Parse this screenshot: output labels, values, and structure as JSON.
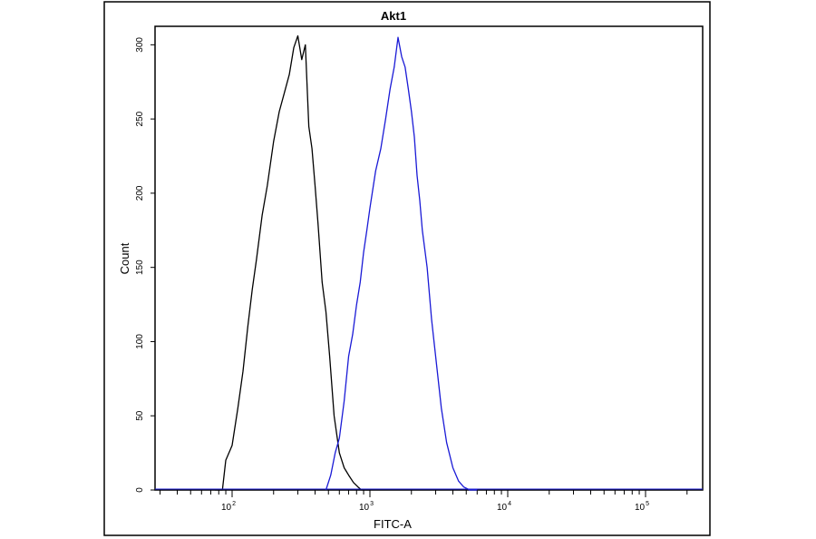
{
  "chart_data": {
    "type": "line",
    "title": "Akt1",
    "xlabel": "FITC-A",
    "ylabel": "Count",
    "x_scale": "log",
    "xlim": [
      10,
      200000
    ],
    "ylim": [
      0,
      310
    ],
    "y_ticks": [
      0,
      50,
      100,
      150,
      200,
      250,
      300
    ],
    "y_tick_labels": [
      "0",
      "50",
      "100",
      "150",
      "200",
      "250",
      "300"
    ],
    "x_ticks": [
      {
        "value": 100,
        "base": "10",
        "exp": "2"
      },
      {
        "value": 1000,
        "base": "10",
        "exp": "3"
      },
      {
        "value": 10000,
        "base": "10",
        "exp": "4"
      },
      {
        "value": 100000,
        "base": "10",
        "exp": "5"
      }
    ],
    "grid": false,
    "series": [
      {
        "color": "#000000",
        "points": [
          [
            75,
            0
          ],
          [
            85,
            0
          ],
          [
            90,
            20
          ],
          [
            100,
            30
          ],
          [
            110,
            55
          ],
          [
            120,
            80
          ],
          [
            130,
            110
          ],
          [
            140,
            135
          ],
          [
            150,
            155
          ],
          [
            165,
            185
          ],
          [
            180,
            205
          ],
          [
            200,
            235
          ],
          [
            220,
            255
          ],
          [
            240,
            268
          ],
          [
            260,
            280
          ],
          [
            280,
            298
          ],
          [
            300,
            306
          ],
          [
            320,
            290
          ],
          [
            340,
            300
          ],
          [
            360,
            245
          ],
          [
            380,
            230
          ],
          [
            400,
            205
          ],
          [
            420,
            180
          ],
          [
            450,
            140
          ],
          [
            480,
            120
          ],
          [
            510,
            90
          ],
          [
            550,
            50
          ],
          [
            600,
            25
          ],
          [
            650,
            15
          ],
          [
            700,
            10
          ],
          [
            760,
            5
          ],
          [
            820,
            2
          ],
          [
            870,
            0
          ],
          [
            1000,
            0
          ]
        ]
      },
      {
        "color": "#1a1ad6",
        "points": [
          [
            480,
            0
          ],
          [
            520,
            10
          ],
          [
            560,
            25
          ],
          [
            600,
            35
          ],
          [
            650,
            60
          ],
          [
            700,
            90
          ],
          [
            750,
            105
          ],
          [
            800,
            125
          ],
          [
            850,
            140
          ],
          [
            900,
            160
          ],
          [
            950,
            175
          ],
          [
            1000,
            190
          ],
          [
            1100,
            215
          ],
          [
            1200,
            230
          ],
          [
            1300,
            250
          ],
          [
            1400,
            270
          ],
          [
            1500,
            285
          ],
          [
            1600,
            305
          ],
          [
            1700,
            292
          ],
          [
            1800,
            285
          ],
          [
            1900,
            270
          ],
          [
            2000,
            255
          ],
          [
            2100,
            238
          ],
          [
            2200,
            212
          ],
          [
            2300,
            195
          ],
          [
            2400,
            175
          ],
          [
            2600,
            150
          ],
          [
            2800,
            115
          ],
          [
            3000,
            90
          ],
          [
            3300,
            55
          ],
          [
            3600,
            32
          ],
          [
            4000,
            15
          ],
          [
            4400,
            6
          ],
          [
            4800,
            2
          ],
          [
            5300,
            0
          ],
          [
            6000,
            0
          ]
        ]
      }
    ]
  }
}
